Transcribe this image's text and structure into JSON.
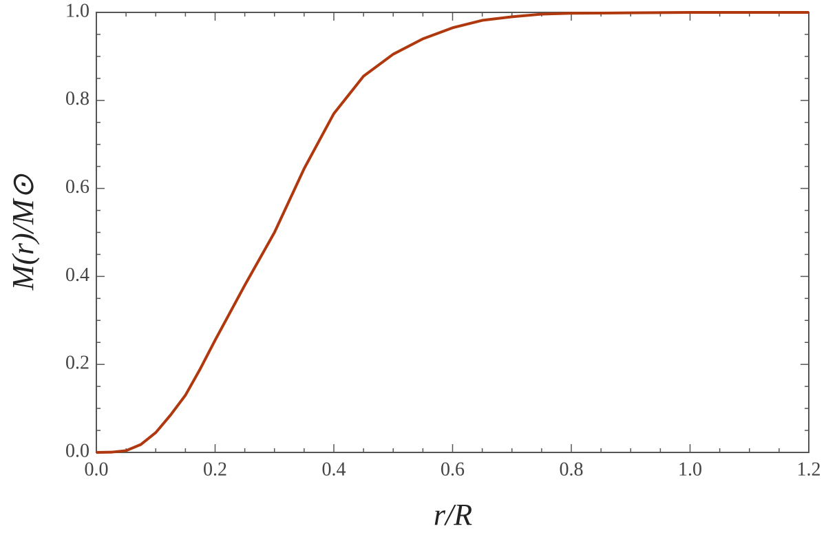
{
  "chart_data": {
    "type": "line",
    "x_label": "r/R",
    "y_label": "M(r)/M⊙",
    "xlim": [
      0,
      1.2
    ],
    "ylim": [
      0,
      1
    ],
    "xticks": [
      {
        "value": 0,
        "label": "0.0"
      },
      0.2,
      0.4,
      0.6,
      0.8,
      {
        "value": 1,
        "label": "1.0"
      },
      1.2
    ],
    "yticks": [
      {
        "value": 0,
        "label": "0.0"
      },
      0.2,
      0.4,
      0.6,
      0.8,
      {
        "value": 1,
        "label": "1.0"
      }
    ],
    "x": [
      0,
      0.025,
      0.05,
      0.075,
      0.1,
      0.125,
      0.15,
      0.175,
      0.2,
      0.25,
      0.3,
      0.35,
      0.4,
      0.45,
      0.5,
      0.55,
      0.6,
      0.65,
      0.7,
      0.75,
      0.8,
      0.9,
      1.0,
      1.1,
      1.2
    ],
    "series": [
      {
        "color": "#b0380e",
        "values": [
          0,
          0.0005,
          0.004,
          0.018,
          0.045,
          0.085,
          0.13,
          0.19,
          0.255,
          0.38,
          0.5,
          0.645,
          0.77,
          0.855,
          0.905,
          0.94,
          0.965,
          0.982,
          0.99,
          0.996,
          0.998,
          0.999,
          1,
          1,
          1
        ]
      }
    ]
  }
}
